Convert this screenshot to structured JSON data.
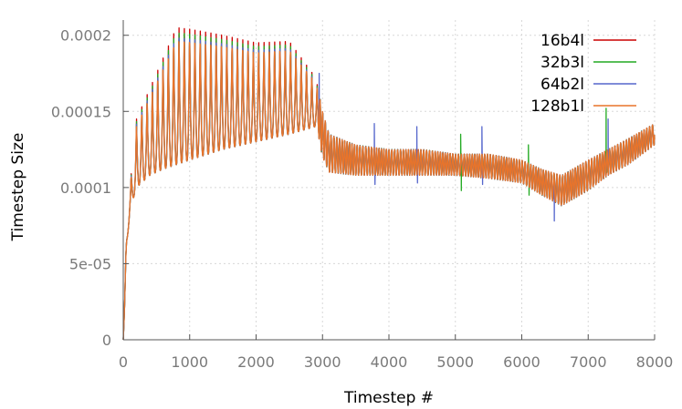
{
  "chart_data": {
    "type": "line",
    "title": "",
    "xlabel": "Timestep #",
    "ylabel": "Timestep Size",
    "xlim": [
      0,
      8000
    ],
    "ylim": [
      0,
      0.00021
    ],
    "x_ticks": [
      {
        "value": 0,
        "label": "0"
      },
      {
        "value": 1000,
        "label": "1000"
      },
      {
        "value": 2000,
        "label": "2000"
      },
      {
        "value": 3000,
        "label": "3000"
      },
      {
        "value": 4000,
        "label": "4000"
      },
      {
        "value": 5000,
        "label": "5000"
      },
      {
        "value": 6000,
        "label": "6000"
      },
      {
        "value": 7000,
        "label": "7000"
      },
      {
        "value": 8000,
        "label": "8000"
      }
    ],
    "y_ticks": [
      {
        "value": 0,
        "label": "0"
      },
      {
        "value": 5e-05,
        "label": "5e-05"
      },
      {
        "value": 0.0001,
        "label": "0.0001"
      },
      {
        "value": 0.00015,
        "label": "0.00015"
      },
      {
        "value": 0.0002,
        "label": "0.0002"
      }
    ],
    "grid": true,
    "legend_position": "top-right",
    "series": [
      {
        "name": "16b4l",
        "color": "#cc0000",
        "spikes": []
      },
      {
        "name": "32b3l",
        "color": "#22aa22",
        "spikes": [
          [
            5080,
            0.000135
          ],
          [
            5090,
            9.8e-05
          ],
          [
            6100,
            0.000128
          ],
          [
            6110,
            9.5e-05
          ],
          [
            7270,
            0.000152
          ],
          [
            7280,
            0.00011
          ]
        ]
      },
      {
        "name": "64b2l",
        "color": "#5566cc",
        "spikes": [
          [
            2950,
            0.000175
          ],
          [
            3780,
            0.000142
          ],
          [
            3790,
            0.000102
          ],
          [
            4420,
            0.00014
          ],
          [
            4430,
            0.000103
          ],
          [
            5400,
            0.00014
          ],
          [
            5410,
            0.000102
          ],
          [
            6480,
            9.8e-05
          ],
          [
            6490,
            7.8e-05
          ],
          [
            7300,
            0.000145
          ]
        ]
      },
      {
        "name": "128b1l",
        "color": "#e8742a",
        "spikes": []
      }
    ],
    "envelope": [
      {
        "x": 0,
        "low": 0.0,
        "high": 0.0
      },
      {
        "x": 20,
        "low": 2e-05,
        "high": 3e-05
      },
      {
        "x": 50,
        "low": 6e-05,
        "high": 7e-05
      },
      {
        "x": 100,
        "low": 8.5e-05,
        "high": 0.0001
      },
      {
        "x": 200,
        "low": 0.0001,
        "high": 0.000145
      },
      {
        "x": 400,
        "low": 0.000108,
        "high": 0.000165
      },
      {
        "x": 600,
        "low": 0.000112,
        "high": 0.000185
      },
      {
        "x": 800,
        "low": 0.000115,
        "high": 0.000205
      },
      {
        "x": 1000,
        "low": 0.000118,
        "high": 0.000204
      },
      {
        "x": 1500,
        "low": 0.000125,
        "high": 0.0002
      },
      {
        "x": 2000,
        "low": 0.00013,
        "high": 0.000195
      },
      {
        "x": 2500,
        "low": 0.000135,
        "high": 0.000196
      },
      {
        "x": 2900,
        "low": 0.00014,
        "high": 0.000172
      },
      {
        "x": 3000,
        "low": 0.00012,
        "high": 0.00015
      },
      {
        "x": 3100,
        "low": 0.00011,
        "high": 0.000135
      },
      {
        "x": 3500,
        "low": 0.000108,
        "high": 0.000128
      },
      {
        "x": 4000,
        "low": 0.000108,
        "high": 0.000125
      },
      {
        "x": 4500,
        "low": 0.000108,
        "high": 0.000125
      },
      {
        "x": 5000,
        "low": 0.000108,
        "high": 0.000122
      },
      {
        "x": 5500,
        "low": 0.000106,
        "high": 0.000122
      },
      {
        "x": 6000,
        "low": 0.000103,
        "high": 0.000118
      },
      {
        "x": 6300,
        "low": 9.5e-05,
        "high": 0.000112
      },
      {
        "x": 6600,
        "low": 8.8e-05,
        "high": 0.000108
      },
      {
        "x": 7000,
        "low": 9.8e-05,
        "high": 0.000118
      },
      {
        "x": 7300,
        "low": 0.000108,
        "high": 0.000125
      },
      {
        "x": 7600,
        "low": 0.000115,
        "high": 0.000132
      },
      {
        "x": 8000,
        "low": 0.000128,
        "high": 0.000142
      }
    ]
  }
}
